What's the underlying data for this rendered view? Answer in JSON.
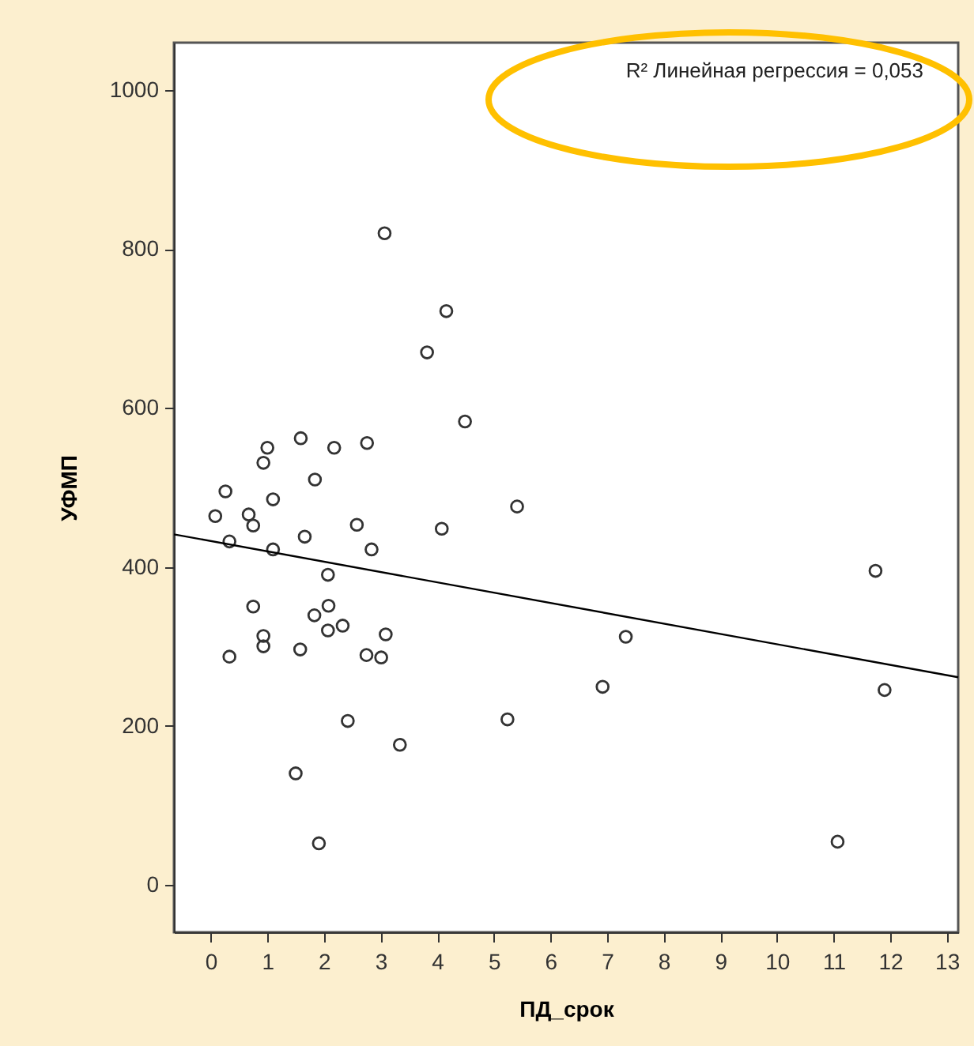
{
  "chart_data": {
    "type": "scatter",
    "xlabel": "ПД_срок",
    "ylabel": "УФМП",
    "annotations": [
      "R² Линейная регрессия = 0,053"
    ],
    "xlim": [
      -0.65,
      13.2
    ],
    "ylim": [
      -60,
      1060
    ],
    "xticks": [
      0,
      1,
      2,
      3,
      4,
      5,
      6,
      7,
      8,
      9,
      10,
      11,
      12,
      13
    ],
    "yticks": [
      0,
      200,
      400,
      600,
      800,
      1000
    ],
    "grid": false,
    "series": [
      {
        "marker": "circle",
        "color": "#333333",
        "x": [
          3.07,
          4.16,
          3.82,
          4.49,
          1.59,
          1.0,
          0.93,
          2.18,
          2.76,
          1.84,
          0.26,
          1.1,
          5.41,
          0.08,
          0.67,
          0.75,
          2.58,
          4.08,
          0.33,
          1.66,
          1.1,
          2.84,
          2.07,
          0.75,
          2.08,
          1.83,
          2.33,
          2.07,
          0.93,
          0.93,
          3.09,
          1.58,
          0.33,
          2.75,
          3.01,
          2.42,
          5.24,
          3.34,
          1.5,
          1.91,
          11.74,
          7.33,
          6.92,
          11.9,
          11.07
        ],
        "values": [
          820,
          722,
          670,
          583,
          562,
          550,
          531,
          550,
          556,
          510,
          495,
          485,
          476,
          464,
          466,
          452,
          453,
          448,
          432,
          438,
          422,
          422,
          390,
          350,
          351,
          339,
          326,
          320,
          313,
          300,
          315,
          296,
          287,
          289,
          286,
          206,
          208,
          176,
          140,
          52,
          395,
          312,
          249,
          245,
          54
        ]
      },
      {
        "type": "line",
        "color": "#000000",
        "line_style": "solid",
        "x": [
          -0.65,
          13.2
        ],
        "values": [
          441,
          261
        ]
      }
    ]
  }
}
